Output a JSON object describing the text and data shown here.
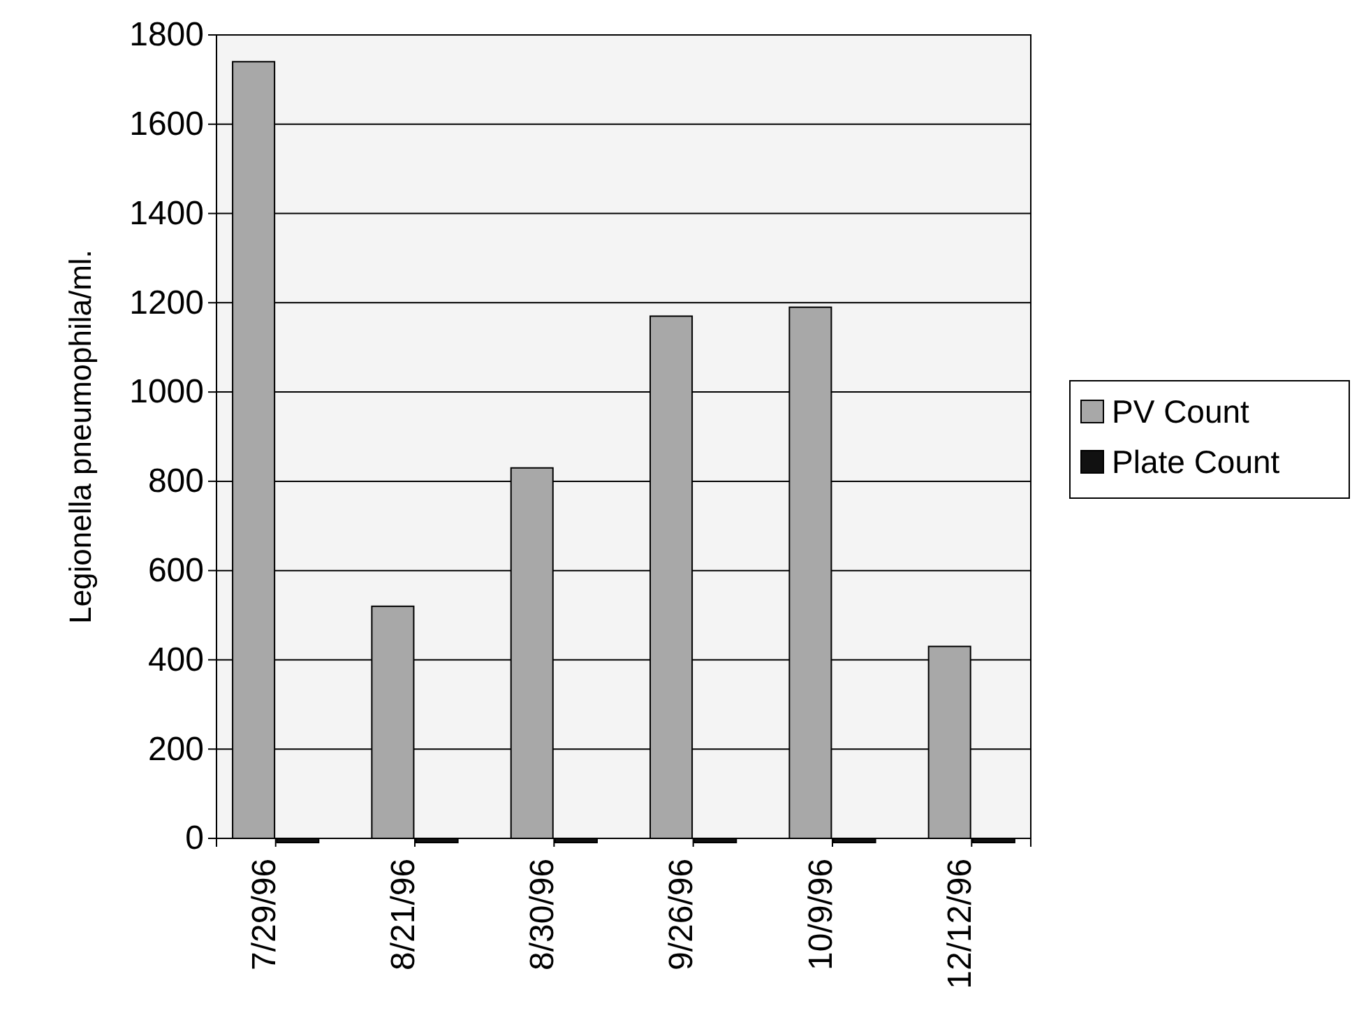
{
  "chart_data": {
    "type": "bar",
    "ylabel": "Legionella pneumophila/ml.",
    "categories": [
      "7/29/96",
      "8/21/96",
      "8/30/96",
      "9/26/96",
      "10/9/96",
      "12/12/96"
    ],
    "series": [
      {
        "name": "PV Count",
        "color": "#a8a8a8",
        "values": [
          1740,
          520,
          830,
          1170,
          1190,
          430
        ]
      },
      {
        "name": "Plate Count",
        "color": "#111111",
        "values": [
          0,
          0,
          0,
          0,
          0,
          0
        ]
      }
    ],
    "ylim": [
      0,
      1800
    ],
    "yticks": [
      0,
      200,
      400,
      600,
      800,
      1000,
      1200,
      1400,
      1600,
      1800
    ],
    "grid": "y",
    "legend": "right"
  }
}
